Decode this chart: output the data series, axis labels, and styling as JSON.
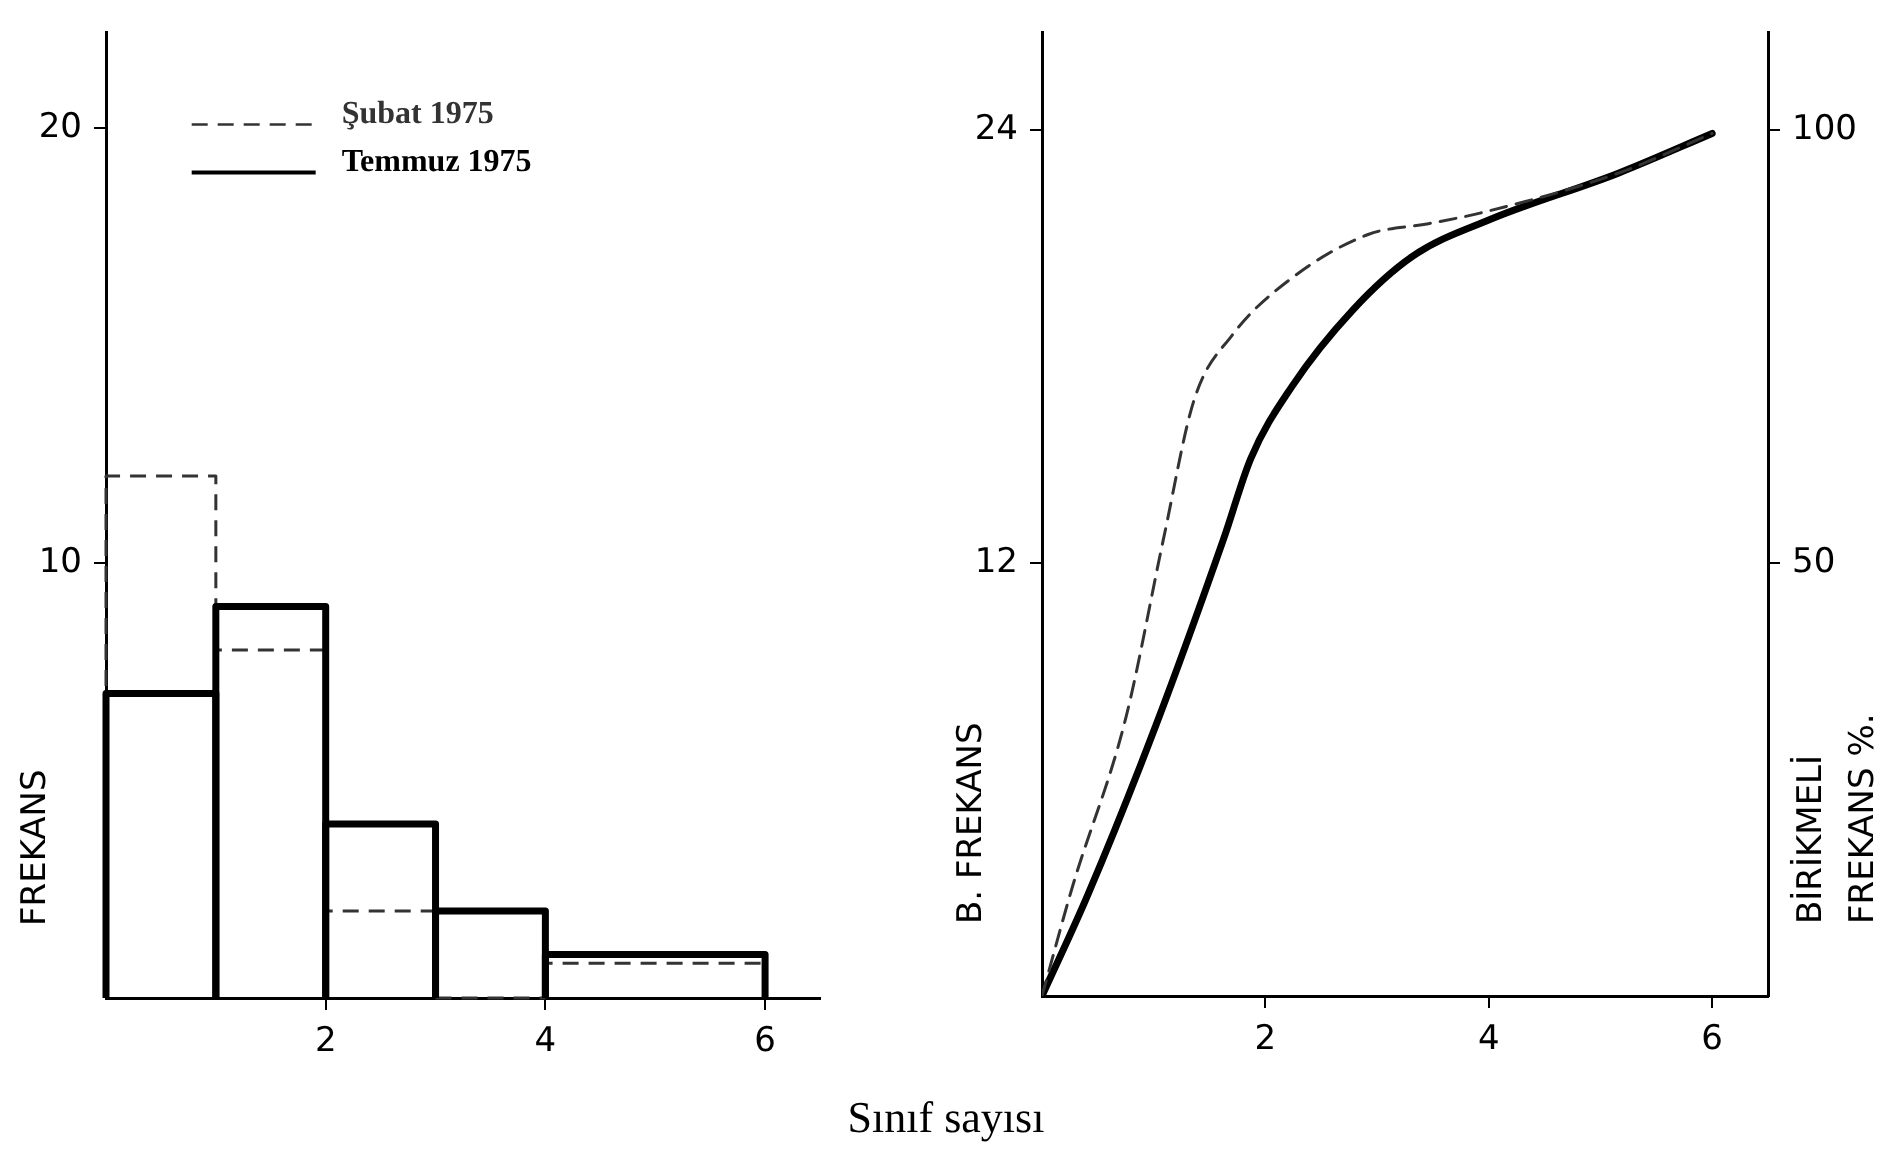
{
  "chart_data": [
    {
      "type": "histogram",
      "xlabel": "Sınıf sayısı",
      "ylabel": "FREKANS",
      "bins": [
        0,
        1,
        2,
        3,
        4,
        6
      ],
      "series": [
        {
          "name": "Şubat 1975",
          "color": "#333333",
          "line_style": "dashed",
          "values": [
            12,
            8,
            2,
            0,
            0.8
          ]
        },
        {
          "name": "Temmuz 1975",
          "color": "#000000",
          "line_style": "solid",
          "values": [
            7,
            9,
            4,
            2,
            1
          ]
        }
      ],
      "xlim": [
        0,
        6.5
      ],
      "xticks": [
        2,
        4,
        6
      ],
      "ylim": [
        0,
        22.2
      ],
      "yticks": [
        10,
        20
      ],
      "legend": "top left"
    },
    {
      "type": "line",
      "ylabel": "B. FREKANS",
      "y2label": "BİRİKMELİ\nFREKANS %.",
      "series": [
        {
          "color": "#333333",
          "line_style": "dashed",
          "x": [
            0,
            0.27,
            0.75,
            1.09,
            1.36,
            1.7,
            2.24,
            2.92,
            3.46,
            3.93,
            5.16,
            6
          ],
          "values": [
            0,
            3,
            7.7,
            12.7,
            16.5,
            18.3,
            19.9,
            21.1,
            21.4,
            21.7,
            22.8,
            23.9
          ]
        },
        {
          "color": "#000000",
          "line_style": "solid",
          "x": [
            0,
            0.41,
            1.02,
            1.63,
            1.87,
            2.24,
            2.78,
            3.32,
            4,
            5.16,
            6
          ],
          "values": [
            0,
            2.8,
            7.5,
            12.7,
            14.9,
            16.9,
            19,
            20.5,
            21.5,
            22.8,
            23.9
          ]
        }
      ],
      "xlim": [
        0,
        6.5
      ],
      "xticks": [
        2,
        4,
        6
      ],
      "ylim": [
        0,
        26.7
      ],
      "yticks": [
        12,
        24
      ],
      "y2lim": [
        0,
        111.25
      ],
      "y2ticks": [
        50,
        100
      ]
    }
  ]
}
